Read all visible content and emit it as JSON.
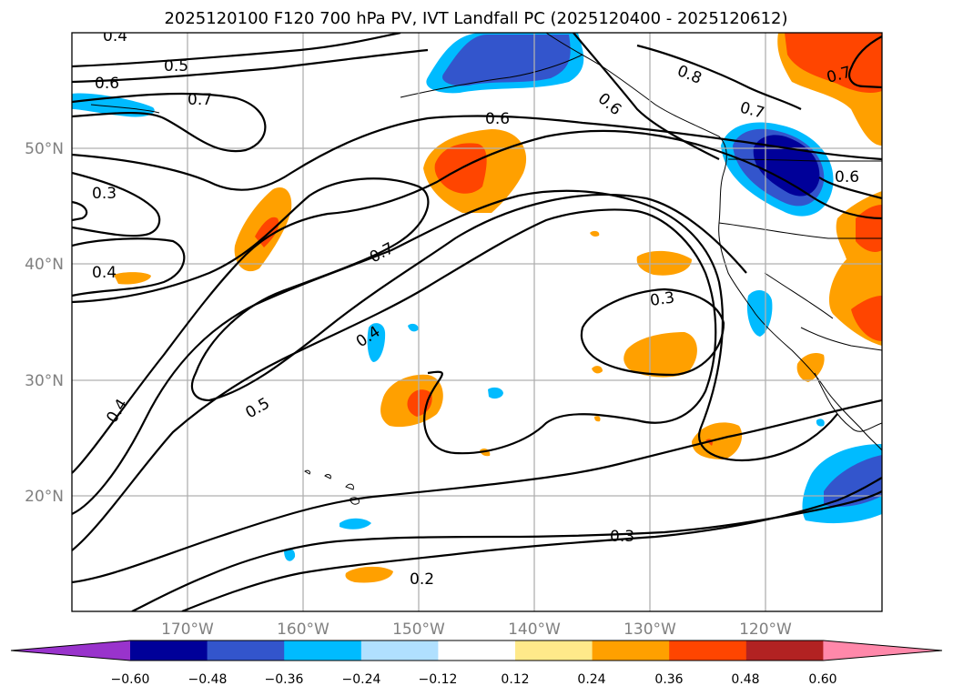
{
  "title": "2025120100 F120 700 hPa PV, IVT Landfall PC (2025120400 - 2025120612)",
  "map": {
    "lon_ticks": [
      "170°W",
      "160°W",
      "150°W",
      "140°W",
      "130°W",
      "120°W"
    ],
    "lat_ticks": [
      "50°N",
      "40°N",
      "30°N",
      "20°N"
    ],
    "contour_labels": [
      "0.4",
      "0.5",
      "0.6",
      "0.7",
      "0.6",
      "0.8",
      "0.7",
      "0.7",
      "0.6",
      "0.6",
      "0.3",
      "0.7",
      "0.4",
      "0.4",
      "0.3",
      "0.4",
      "0.5",
      "0.3",
      "0.2"
    ],
    "colors": {
      "purple": "#9933cc",
      "navy": "#000099",
      "royal": "#3355cc",
      "cyan": "#00bbff",
      "lightblue": "#b0e0ff",
      "yellow": "#ffe98a",
      "orange": "#ffa000",
      "redorange": "#ff4500",
      "darkred": "#b22222",
      "pink": "#ff88aa"
    }
  },
  "colorbar": {
    "ticks": [
      "−0.60",
      "−0.48",
      "−0.36",
      "−0.24",
      "−0.12",
      "0.12",
      "0.24",
      "0.36",
      "0.48",
      "0.60"
    ],
    "levels": [
      -0.6,
      -0.48,
      -0.36,
      -0.24,
      -0.12,
      0.12,
      0.24,
      0.36,
      0.48,
      0.6
    ],
    "colors": [
      "#9933cc",
      "#000099",
      "#3355cc",
      "#00bbff",
      "#b0e0ff",
      "#ffffff",
      "#ffe98a",
      "#ffa000",
      "#ff4500",
      "#b22222",
      "#ff88aa"
    ]
  }
}
